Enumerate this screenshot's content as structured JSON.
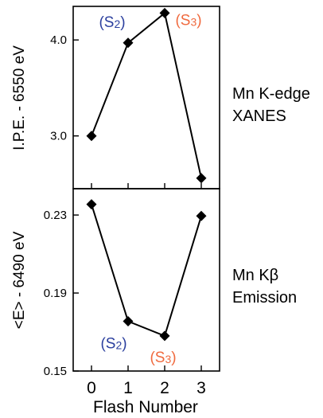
{
  "chart_data": [
    {
      "type": "line",
      "ylabel": "I.P.E. - 6550 eV",
      "side_label": [
        "Mn K-edge",
        "XANES"
      ],
      "x": [
        0,
        1,
        2,
        3
      ],
      "values": [
        3.0,
        3.97,
        4.28,
        2.56
      ],
      "yticks": [
        "3.0",
        "4.0"
      ],
      "ytick_values": [
        3.0,
        4.0
      ],
      "ylim": [
        2.45,
        4.35
      ],
      "xlim": [
        -0.5,
        3.5
      ],
      "annotations": [
        {
          "text": "(S2)",
          "base": "(S",
          "sub": "2",
          "suffix": ")",
          "color": "#2b3f9e",
          "x": 1,
          "y": 3.97
        },
        {
          "text": "(S3)",
          "base": "(S",
          "sub": "3",
          "suffix": ")",
          "color": "#f06a3e",
          "x": 2,
          "y": 4.28
        }
      ]
    },
    {
      "type": "line",
      "ylabel": "<E> - 6490 eV",
      "side_label": [
        "Mn Kβ",
        "Emission"
      ],
      "x": [
        0,
        1,
        2,
        3
      ],
      "values": [
        0.2355,
        0.1755,
        0.168,
        0.2295
      ],
      "yticks": [
        "0.15",
        "0.19",
        "0.23"
      ],
      "ytick_values": [
        0.15,
        0.19,
        0.23
      ],
      "ylim": [
        0.15,
        0.2435
      ],
      "xlim": [
        -0.5,
        3.5
      ],
      "xlabel": "Flash Number",
      "xticks": [
        "0",
        "1",
        "2",
        "3"
      ],
      "annotations": [
        {
          "text": "(S2)",
          "base": "(S",
          "sub": "2",
          "suffix": ")",
          "color": "#2b3f9e",
          "x": 1,
          "y": 0.1755
        },
        {
          "text": "(S3)",
          "base": "(S",
          "sub": "3",
          "suffix": ")",
          "color": "#f06a3e",
          "x": 2,
          "y": 0.168
        }
      ]
    }
  ]
}
